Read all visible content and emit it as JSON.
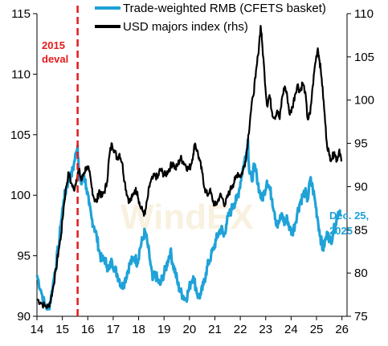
{
  "chart_data": {
    "type": "line",
    "x_ticks": [
      "14",
      "15",
      "16",
      "17",
      "18",
      "19",
      "20",
      "21",
      "22",
      "23",
      "24",
      "25",
      "26"
    ],
    "x_range": [
      2014,
      2026.2
    ],
    "left_axis": {
      "ticks": [
        "90",
        "95",
        "100",
        "105",
        "110",
        "115"
      ],
      "range": [
        90,
        115
      ]
    },
    "right_axis": {
      "ticks": [
        "75",
        "80",
        "85",
        "90",
        "95",
        "100",
        "105",
        "110"
      ],
      "range": [
        75,
        110
      ]
    },
    "legend": {
      "position": "top-center",
      "entries": [
        {
          "label": "Trade-weighted RMB (CFETS basket)",
          "color": "#1fa2d8"
        },
        {
          "label": "USD majors index (rhs)",
          "color": "#000000"
        }
      ]
    },
    "annotations": {
      "deval_label_line1": "2015",
      "deval_label_line2": "deval",
      "deval_date": 2015.6,
      "end_label_line1": "Dec. 25,",
      "end_label_line2": "2025"
    },
    "watermark": "WindEX",
    "series": [
      {
        "name": "Trade-weighted RMB (CFETS basket)",
        "axis": "left",
        "color": "#1fa2d8",
        "points": [
          [
            2014.0,
            93.4
          ],
          [
            2014.15,
            92.2
          ],
          [
            2014.3,
            91.0
          ],
          [
            2014.45,
            90.6
          ],
          [
            2014.55,
            91.5
          ],
          [
            2014.7,
            93.6
          ],
          [
            2014.85,
            95.8
          ],
          [
            2014.95,
            97.8
          ],
          [
            2015.05,
            99.6
          ],
          [
            2015.15,
            100.5
          ],
          [
            2015.25,
            101.3
          ],
          [
            2015.35,
            101.6
          ],
          [
            2015.45,
            102.5
          ],
          [
            2015.55,
            103.6
          ],
          [
            2015.6,
            104.1
          ],
          [
            2015.65,
            101.8
          ],
          [
            2015.75,
            100.9
          ],
          [
            2015.85,
            101.8
          ],
          [
            2015.95,
            100.6
          ],
          [
            2016.05,
            99.2
          ],
          [
            2016.15,
            98.1
          ],
          [
            2016.25,
            97.4
          ],
          [
            2016.35,
            96.6
          ],
          [
            2016.45,
            95.4
          ],
          [
            2016.55,
            94.6
          ],
          [
            2016.65,
            94.8
          ],
          [
            2016.75,
            94.2
          ],
          [
            2016.85,
            93.9
          ],
          [
            2016.95,
            94.6
          ],
          [
            2017.05,
            94.0
          ],
          [
            2017.15,
            93.5
          ],
          [
            2017.25,
            93.0
          ],
          [
            2017.35,
            92.4
          ],
          [
            2017.45,
            92.9
          ],
          [
            2017.55,
            93.6
          ],
          [
            2017.65,
            94.3
          ],
          [
            2017.75,
            94.6
          ],
          [
            2017.85,
            94.9
          ],
          [
            2017.95,
            94.4
          ],
          [
            2018.05,
            95.6
          ],
          [
            2018.15,
            96.3
          ],
          [
            2018.25,
            97.0
          ],
          [
            2018.35,
            96.0
          ],
          [
            2018.45,
            94.6
          ],
          [
            2018.55,
            93.0
          ],
          [
            2018.65,
            93.5
          ],
          [
            2018.75,
            93.0
          ],
          [
            2018.85,
            92.6
          ],
          [
            2018.95,
            93.3
          ],
          [
            2019.05,
            93.8
          ],
          [
            2019.15,
            94.6
          ],
          [
            2019.25,
            95.4
          ],
          [
            2019.35,
            94.3
          ],
          [
            2019.45,
            93.6
          ],
          [
            2019.55,
            92.6
          ],
          [
            2019.65,
            92.0
          ],
          [
            2019.75,
            91.7
          ],
          [
            2019.85,
            91.4
          ],
          [
            2019.95,
            92.0
          ],
          [
            2020.05,
            92.8
          ],
          [
            2020.15,
            93.3
          ],
          [
            2020.25,
            92.4
          ],
          [
            2020.35,
            91.6
          ],
          [
            2020.45,
            91.8
          ],
          [
            2020.55,
            92.6
          ],
          [
            2020.65,
            93.6
          ],
          [
            2020.75,
            94.4
          ],
          [
            2020.85,
            95.0
          ],
          [
            2020.95,
            95.6
          ],
          [
            2021.05,
            96.3
          ],
          [
            2021.15,
            96.9
          ],
          [
            2021.25,
            97.3
          ],
          [
            2021.35,
            96.6
          ],
          [
            2021.45,
            97.6
          ],
          [
            2021.55,
            98.3
          ],
          [
            2021.65,
            98.8
          ],
          [
            2021.75,
            99.3
          ],
          [
            2021.85,
            99.6
          ],
          [
            2021.95,
            100.4
          ],
          [
            2022.05,
            101.6
          ],
          [
            2022.15,
            102.7
          ],
          [
            2022.25,
            103.6
          ],
          [
            2022.3,
            104.6
          ],
          [
            2022.35,
            102.0
          ],
          [
            2022.45,
            101.2
          ],
          [
            2022.55,
            102.4
          ],
          [
            2022.65,
            101.6
          ],
          [
            2022.75,
            100.4
          ],
          [
            2022.85,
            99.6
          ],
          [
            2022.95,
            100.3
          ],
          [
            2023.05,
            101.2
          ],
          [
            2023.15,
            100.6
          ],
          [
            2023.25,
            99.7
          ],
          [
            2023.35,
            98.6
          ],
          [
            2023.45,
            97.4
          ],
          [
            2023.55,
            97.9
          ],
          [
            2023.65,
            98.4
          ],
          [
            2023.75,
            97.6
          ],
          [
            2023.85,
            98.1
          ],
          [
            2023.95,
            97.2
          ],
          [
            2024.05,
            96.9
          ],
          [
            2024.15,
            97.6
          ],
          [
            2024.25,
            98.6
          ],
          [
            2024.35,
            99.4
          ],
          [
            2024.45,
            99.9
          ],
          [
            2024.55,
            100.3
          ],
          [
            2024.65,
            99.6
          ],
          [
            2024.75,
            101.3
          ],
          [
            2024.85,
            100.6
          ],
          [
            2024.95,
            99.4
          ],
          [
            2025.05,
            98.0
          ],
          [
            2025.15,
            96.6
          ],
          [
            2025.25,
            95.5
          ],
          [
            2025.35,
            96.3
          ],
          [
            2025.45,
            96.9
          ],
          [
            2025.55,
            96.1
          ],
          [
            2025.65,
            96.9
          ],
          [
            2025.75,
            97.6
          ],
          [
            2025.85,
            98.6
          ],
          [
            2025.95,
            98.8
          ]
        ]
      },
      {
        "name": "USD majors index (rhs)",
        "axis": "right",
        "color": "#000000",
        "points": [
          [
            2014.0,
            77.0
          ],
          [
            2014.15,
            76.6
          ],
          [
            2014.3,
            76.2
          ],
          [
            2014.45,
            76.1
          ],
          [
            2014.55,
            77.0
          ],
          [
            2014.65,
            78.6
          ],
          [
            2014.75,
            80.4
          ],
          [
            2014.85,
            82.6
          ],
          [
            2014.95,
            84.4
          ],
          [
            2015.05,
            87.6
          ],
          [
            2015.15,
            90.0
          ],
          [
            2015.25,
            91.6
          ],
          [
            2015.35,
            90.4
          ],
          [
            2015.45,
            89.6
          ],
          [
            2015.55,
            90.8
          ],
          [
            2015.65,
            91.9
          ],
          [
            2015.75,
            90.7
          ],
          [
            2015.85,
            91.6
          ],
          [
            2015.95,
            92.3
          ],
          [
            2016.05,
            91.8
          ],
          [
            2016.15,
            90.0
          ],
          [
            2016.25,
            88.6
          ],
          [
            2016.35,
            88.2
          ],
          [
            2016.45,
            89.6
          ],
          [
            2016.55,
            88.8
          ],
          [
            2016.65,
            89.4
          ],
          [
            2016.75,
            90.4
          ],
          [
            2016.85,
            93.6
          ],
          [
            2016.95,
            95.0
          ],
          [
            2017.05,
            94.2
          ],
          [
            2017.15,
            93.3
          ],
          [
            2017.25,
            93.8
          ],
          [
            2017.35,
            92.8
          ],
          [
            2017.45,
            90.6
          ],
          [
            2017.55,
            89.0
          ],
          [
            2017.65,
            88.2
          ],
          [
            2017.75,
            88.8
          ],
          [
            2017.85,
            89.6
          ],
          [
            2017.95,
            89.4
          ],
          [
            2018.05,
            87.8
          ],
          [
            2018.15,
            87.2
          ],
          [
            2018.25,
            86.8
          ],
          [
            2018.35,
            88.6
          ],
          [
            2018.45,
            90.4
          ],
          [
            2018.55,
            90.9
          ],
          [
            2018.65,
            91.3
          ],
          [
            2018.75,
            91.0
          ],
          [
            2018.85,
            92.0
          ],
          [
            2018.95,
            91.6
          ],
          [
            2019.05,
            91.3
          ],
          [
            2019.15,
            91.8
          ],
          [
            2019.25,
            92.3
          ],
          [
            2019.35,
            92.8
          ],
          [
            2019.45,
            92.0
          ],
          [
            2019.55,
            92.6
          ],
          [
            2019.65,
            93.3
          ],
          [
            2019.75,
            92.9
          ],
          [
            2019.85,
            92.5
          ],
          [
            2019.95,
            92.0
          ],
          [
            2020.05,
            92.4
          ],
          [
            2020.15,
            93.8
          ],
          [
            2020.22,
            95.0
          ],
          [
            2020.3,
            94.2
          ],
          [
            2020.4,
            93.0
          ],
          [
            2020.5,
            91.6
          ],
          [
            2020.6,
            89.8
          ],
          [
            2020.7,
            89.0
          ],
          [
            2020.8,
            89.6
          ],
          [
            2020.9,
            88.6
          ],
          [
            2021.0,
            87.8
          ],
          [
            2021.1,
            88.2
          ],
          [
            2021.2,
            89.0
          ],
          [
            2021.3,
            88.6
          ],
          [
            2021.4,
            87.9
          ],
          [
            2021.5,
            88.8
          ],
          [
            2021.6,
            89.6
          ],
          [
            2021.7,
            90.2
          ],
          [
            2021.8,
            90.8
          ],
          [
            2021.9,
            91.6
          ],
          [
            2022.0,
            91.2
          ],
          [
            2022.1,
            91.8
          ],
          [
            2022.2,
            92.9
          ],
          [
            2022.3,
            95.3
          ],
          [
            2022.4,
            98.3
          ],
          [
            2022.5,
            100.4
          ],
          [
            2022.6,
            102.6
          ],
          [
            2022.7,
            105.2
          ],
          [
            2022.8,
            108.6
          ],
          [
            2022.85,
            107.0
          ],
          [
            2022.95,
            103.2
          ],
          [
            2023.05,
            99.4
          ],
          [
            2023.15,
            100.6
          ],
          [
            2023.25,
            98.6
          ],
          [
            2023.35,
            98.0
          ],
          [
            2023.45,
            98.8
          ],
          [
            2023.55,
            97.8
          ],
          [
            2023.65,
            100.4
          ],
          [
            2023.75,
            101.6
          ],
          [
            2023.85,
            100.4
          ],
          [
            2023.95,
            98.3
          ],
          [
            2024.05,
            99.2
          ],
          [
            2024.15,
            100.6
          ],
          [
            2024.25,
            101.8
          ],
          [
            2024.35,
            101.0
          ],
          [
            2024.45,
            102.0
          ],
          [
            2024.55,
            101.0
          ],
          [
            2024.65,
            97.8
          ],
          [
            2024.75,
            98.4
          ],
          [
            2024.85,
            101.6
          ],
          [
            2024.95,
            104.3
          ],
          [
            2025.05,
            106.0
          ],
          [
            2025.12,
            104.6
          ],
          [
            2025.2,
            102.6
          ],
          [
            2025.3,
            99.0
          ],
          [
            2025.4,
            95.2
          ],
          [
            2025.5,
            93.6
          ],
          [
            2025.6,
            93.2
          ],
          [
            2025.7,
            94.0
          ],
          [
            2025.8,
            93.0
          ],
          [
            2025.9,
            94.3
          ],
          [
            2025.98,
            92.9
          ]
        ]
      }
    ]
  }
}
